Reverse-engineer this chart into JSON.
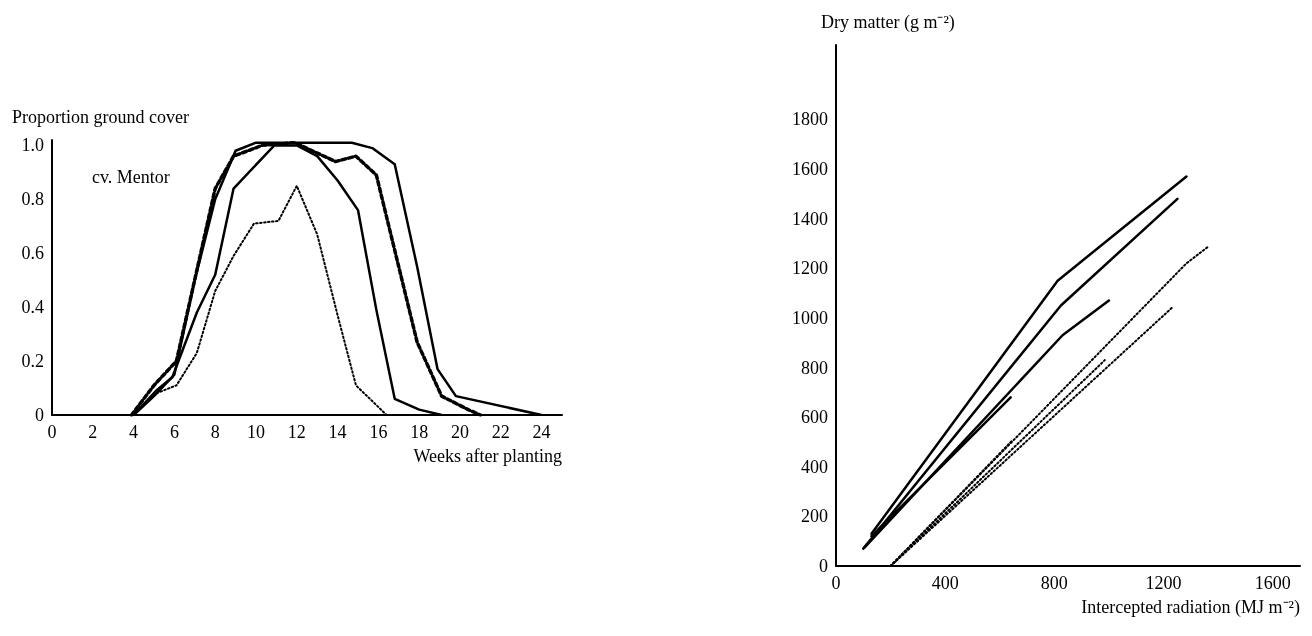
{
  "chart_data": [
    {
      "type": "line",
      "ylabel": "Proportion ground cover",
      "xlabel": "Weeks after planting",
      "annotations": [
        "cv. Mentor"
      ],
      "xlim": [
        0,
        25
      ],
      "xticks": [
        0,
        2,
        4,
        6,
        8,
        10,
        12,
        14,
        16,
        18,
        20,
        22,
        24
      ],
      "ylim": [
        0,
        1.02
      ],
      "yticks": [
        0,
        0.2,
        0.4,
        0.6,
        0.8,
        {
          "value": 1,
          "label": "1.0"
        }
      ],
      "grid": false,
      "marker": "none",
      "series": [
        {
          "color": "#000000",
          "line_style": "solid",
          "x": [
            4,
            5,
            6,
            7,
            8,
            9,
            10,
            14.7,
            15.7,
            16.8,
            17.9,
            18.9,
            19.8,
            24
          ],
          "values": [
            0,
            0.07,
            0.15,
            0.5,
            0.8,
            0.98,
            1.01,
            1.01,
            0.99,
            0.93,
            0.55,
            0.17,
            0.07,
            0
          ]
        },
        {
          "color": "#000000",
          "line_style": "dashed",
          "x": [
            3.9,
            5,
            6.1,
            8,
            8.9,
            10.3,
            11.9,
            13.9,
            14.9,
            15.9,
            16.9,
            17.9,
            19.1,
            20.4,
            21
          ],
          "values": [
            0,
            0.11,
            0.2,
            0.84,
            0.96,
            1.0,
            1.01,
            0.94,
            0.96,
            0.89,
            0.58,
            0.27,
            0.07,
            0.02,
            0
          ]
        },
        {
          "color": "#000000",
          "line_style": "solid",
          "x": [
            4,
            5.1,
            5.9,
            7.1,
            8,
            8.9,
            10.9,
            12,
            13,
            14,
            15,
            15.9,
            16.8,
            18,
            19.1
          ],
          "values": [
            0,
            0.09,
            0.14,
            0.38,
            0.52,
            0.84,
            1.0,
            1.0,
            0.96,
            0.87,
            0.76,
            0.39,
            0.06,
            0.02,
            0
          ]
        },
        {
          "color": "#000000",
          "line_style": "dotted",
          "x": [
            4,
            5.1,
            6.1,
            7.1,
            8,
            8.9,
            9.9,
            11.1,
            12,
            13,
            14,
            14.9,
            16.4
          ],
          "values": [
            0,
            0.08,
            0.11,
            0.23,
            0.46,
            0.59,
            0.71,
            0.72,
            0.85,
            0.67,
            0.37,
            0.11,
            0
          ]
        }
      ]
    },
    {
      "type": "line",
      "ylabel": "Dry matter (g m⁻²)",
      "xlabel": "Intercepted radiation (MJ m⁻²)",
      "xlim": [
        0,
        1700
      ],
      "xticks": [
        0,
        400,
        800,
        1200,
        1600
      ],
      "ylim": [
        0,
        2100
      ],
      "yticks": [
        0,
        200,
        400,
        600,
        800,
        1000,
        1200,
        1400,
        1600,
        1800
      ],
      "grid": false,
      "marker": "none",
      "series": [
        {
          "color": "#000000",
          "line_style": "solid",
          "x": [
            130,
            812,
            1284
          ],
          "values": [
            130,
            1150,
            1570
          ]
        },
        {
          "color": "#000000",
          "line_style": "solid",
          "x": [
            100,
            824,
            1251
          ],
          "values": [
            70,
            1050,
            1480
          ]
        },
        {
          "color": "#000000",
          "line_style": "solid",
          "x": [
            105,
            830,
            1000
          ],
          "values": [
            75,
            930,
            1070
          ]
        },
        {
          "color": "#000000",
          "line_style": "solid",
          "x": [
            130,
            640
          ],
          "values": [
            120,
            680
          ]
        },
        {
          "color": "#000000",
          "line_style": "dotted",
          "x": [
            200,
            1284,
            1367
          ],
          "values": [
            0,
            1220,
            1290
          ]
        },
        {
          "color": "#000000",
          "line_style": "dotted",
          "x": [
            200,
            1230
          ],
          "values": [
            0,
            1040
          ]
        },
        {
          "color": "#000000",
          "line_style": "dotted",
          "x": [
            200,
            985
          ],
          "values": [
            0,
            830
          ]
        },
        {
          "color": "#000000",
          "line_style": "dotted",
          "x": [
            200,
            645
          ],
          "values": [
            0,
            505
          ]
        }
      ]
    }
  ]
}
